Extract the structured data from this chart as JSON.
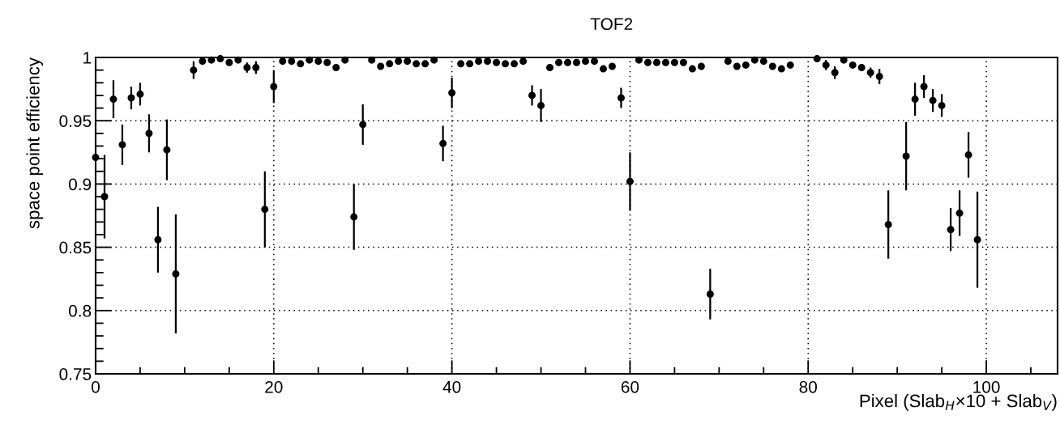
{
  "chart_data": {
    "type": "scatter",
    "title": "TOF2",
    "xlabel": "Pixel (Slab$_{H}$×10 + Slab$_{V}$)",
    "ylabel": "space point efficiency",
    "x": [
      0,
      1,
      2,
      3,
      4,
      5,
      6,
      7,
      8,
      9,
      10,
      11,
      12,
      13,
      14,
      15,
      16,
      17,
      18,
      19,
      20,
      21,
      22,
      23,
      24,
      25,
      26,
      27,
      28,
      29,
      30,
      31,
      32,
      33,
      34,
      35,
      36,
      37,
      38,
      39,
      40,
      41,
      42,
      43,
      44,
      45,
      46,
      47,
      48,
      49,
      50,
      51,
      52,
      53,
      54,
      55,
      56,
      57,
      58,
      59,
      60,
      61,
      62,
      63,
      64,
      65,
      66,
      67,
      68,
      69,
      70,
      71,
      72,
      73,
      74,
      75,
      76,
      77,
      78,
      79,
      80,
      81,
      82,
      83,
      84,
      85,
      86,
      87,
      88,
      89,
      90,
      91,
      92,
      93,
      94,
      95,
      96,
      97,
      98,
      99
    ],
    "series": [
      {
        "color": "#000000",
        "values": [
          0.921,
          0.89,
          0.967,
          0.931,
          0.968,
          0.971,
          0.94,
          0.856,
          0.927,
          0.829,
          null,
          0.99,
          0.997,
          0.998,
          0.999,
          0.996,
          0.998,
          0.992,
          0.992,
          0.88,
          0.977,
          0.997,
          0.997,
          0.995,
          0.998,
          0.997,
          0.996,
          0.992,
          0.998,
          0.874,
          0.947,
          0.998,
          0.993,
          0.995,
          0.997,
          0.997,
          0.995,
          0.995,
          0.998,
          0.932,
          0.972,
          0.995,
          0.995,
          0.997,
          0.997,
          0.996,
          0.995,
          0.995,
          0.997,
          0.97,
          0.962,
          0.992,
          0.996,
          0.996,
          0.996,
          0.997,
          0.997,
          0.991,
          0.993,
          0.968,
          0.902,
          0.998,
          0.996,
          0.996,
          0.996,
          0.996,
          0.996,
          0.991,
          0.993,
          0.813,
          null,
          0.997,
          0.993,
          0.994,
          0.998,
          0.997,
          0.993,
          0.991,
          0.994,
          null,
          null,
          0.999,
          0.994,
          0.988,
          0.998,
          0.994,
          0.992,
          0.988,
          0.985,
          0.868,
          null,
          0.922,
          0.967,
          0.977,
          0.966,
          0.962,
          0.864,
          0.877,
          0.923,
          0.856
        ],
        "errors": [
          null,
          0.033,
          0.015,
          0.016,
          0.009,
          0.009,
          0.015,
          0.026,
          0.024,
          0.047,
          null,
          0.007,
          null,
          null,
          null,
          null,
          null,
          0.004,
          0.005,
          0.03,
          0.013,
          null,
          null,
          null,
          null,
          null,
          null,
          null,
          null,
          0.026,
          0.016,
          null,
          null,
          null,
          null,
          null,
          null,
          null,
          null,
          0.014,
          0.012,
          null,
          null,
          null,
          null,
          null,
          null,
          null,
          null,
          0.008,
          0.013,
          0.002,
          null,
          null,
          null,
          null,
          null,
          null,
          null,
          0.008,
          0.023,
          null,
          null,
          null,
          null,
          null,
          null,
          null,
          null,
          0.02,
          null,
          null,
          null,
          null,
          null,
          null,
          null,
          null,
          null,
          null,
          null,
          null,
          0.004,
          0.005,
          null,
          null,
          null,
          0.004,
          0.006,
          0.027,
          null,
          0.027,
          0.013,
          0.009,
          0.009,
          0.009,
          0.017,
          0.018,
          0.018,
          0.038
        ]
      }
    ],
    "xlim": [
      0,
      108
    ],
    "ylim": [
      0.75,
      1.0
    ],
    "xticks": [
      0,
      {
        "value": 5,
        "label": null
      },
      {
        "value": 10,
        "label": null
      },
      {
        "value": 15,
        "label": null
      },
      20,
      {
        "value": 25,
        "label": null
      },
      {
        "value": 30,
        "label": null
      },
      {
        "value": 35,
        "label": null
      },
      40,
      {
        "value": 45,
        "label": null
      },
      {
        "value": 50,
        "label": null
      },
      {
        "value": 55,
        "label": null
      },
      60,
      {
        "value": 65,
        "label": null
      },
      {
        "value": 70,
        "label": null
      },
      {
        "value": 75,
        "label": null
      },
      80,
      {
        "value": 85,
        "label": null
      },
      {
        "value": 90,
        "label": null
      },
      {
        "value": 95,
        "label": null
      },
      100,
      {
        "value": 105,
        "label": null
      }
    ],
    "yticks": [
      0.75,
      {
        "value": 0.76,
        "label": null
      },
      {
        "value": 0.77,
        "label": null
      },
      {
        "value": 0.78,
        "label": null
      },
      {
        "value": 0.79,
        "label": null
      },
      0.8,
      {
        "value": 0.81,
        "label": null
      },
      {
        "value": 0.82,
        "label": null
      },
      {
        "value": 0.83,
        "label": null
      },
      {
        "value": 0.84,
        "label": null
      },
      0.85,
      {
        "value": 0.86,
        "label": null
      },
      {
        "value": 0.87,
        "label": null
      },
      {
        "value": 0.88,
        "label": null
      },
      {
        "value": 0.89,
        "label": null
      },
      0.9,
      {
        "value": 0.91,
        "label": null
      },
      {
        "value": 0.92,
        "label": null
      },
      {
        "value": 0.93,
        "label": null
      },
      {
        "value": 0.94,
        "label": null
      },
      0.95,
      {
        "value": 0.96,
        "label": null
      },
      {
        "value": 0.97,
        "label": null
      },
      {
        "value": 0.98,
        "label": null
      },
      {
        "value": 0.99,
        "label": null
      },
      {
        "value": 1,
        "label": "1"
      }
    ],
    "grid": true,
    "marker": "circle"
  }
}
